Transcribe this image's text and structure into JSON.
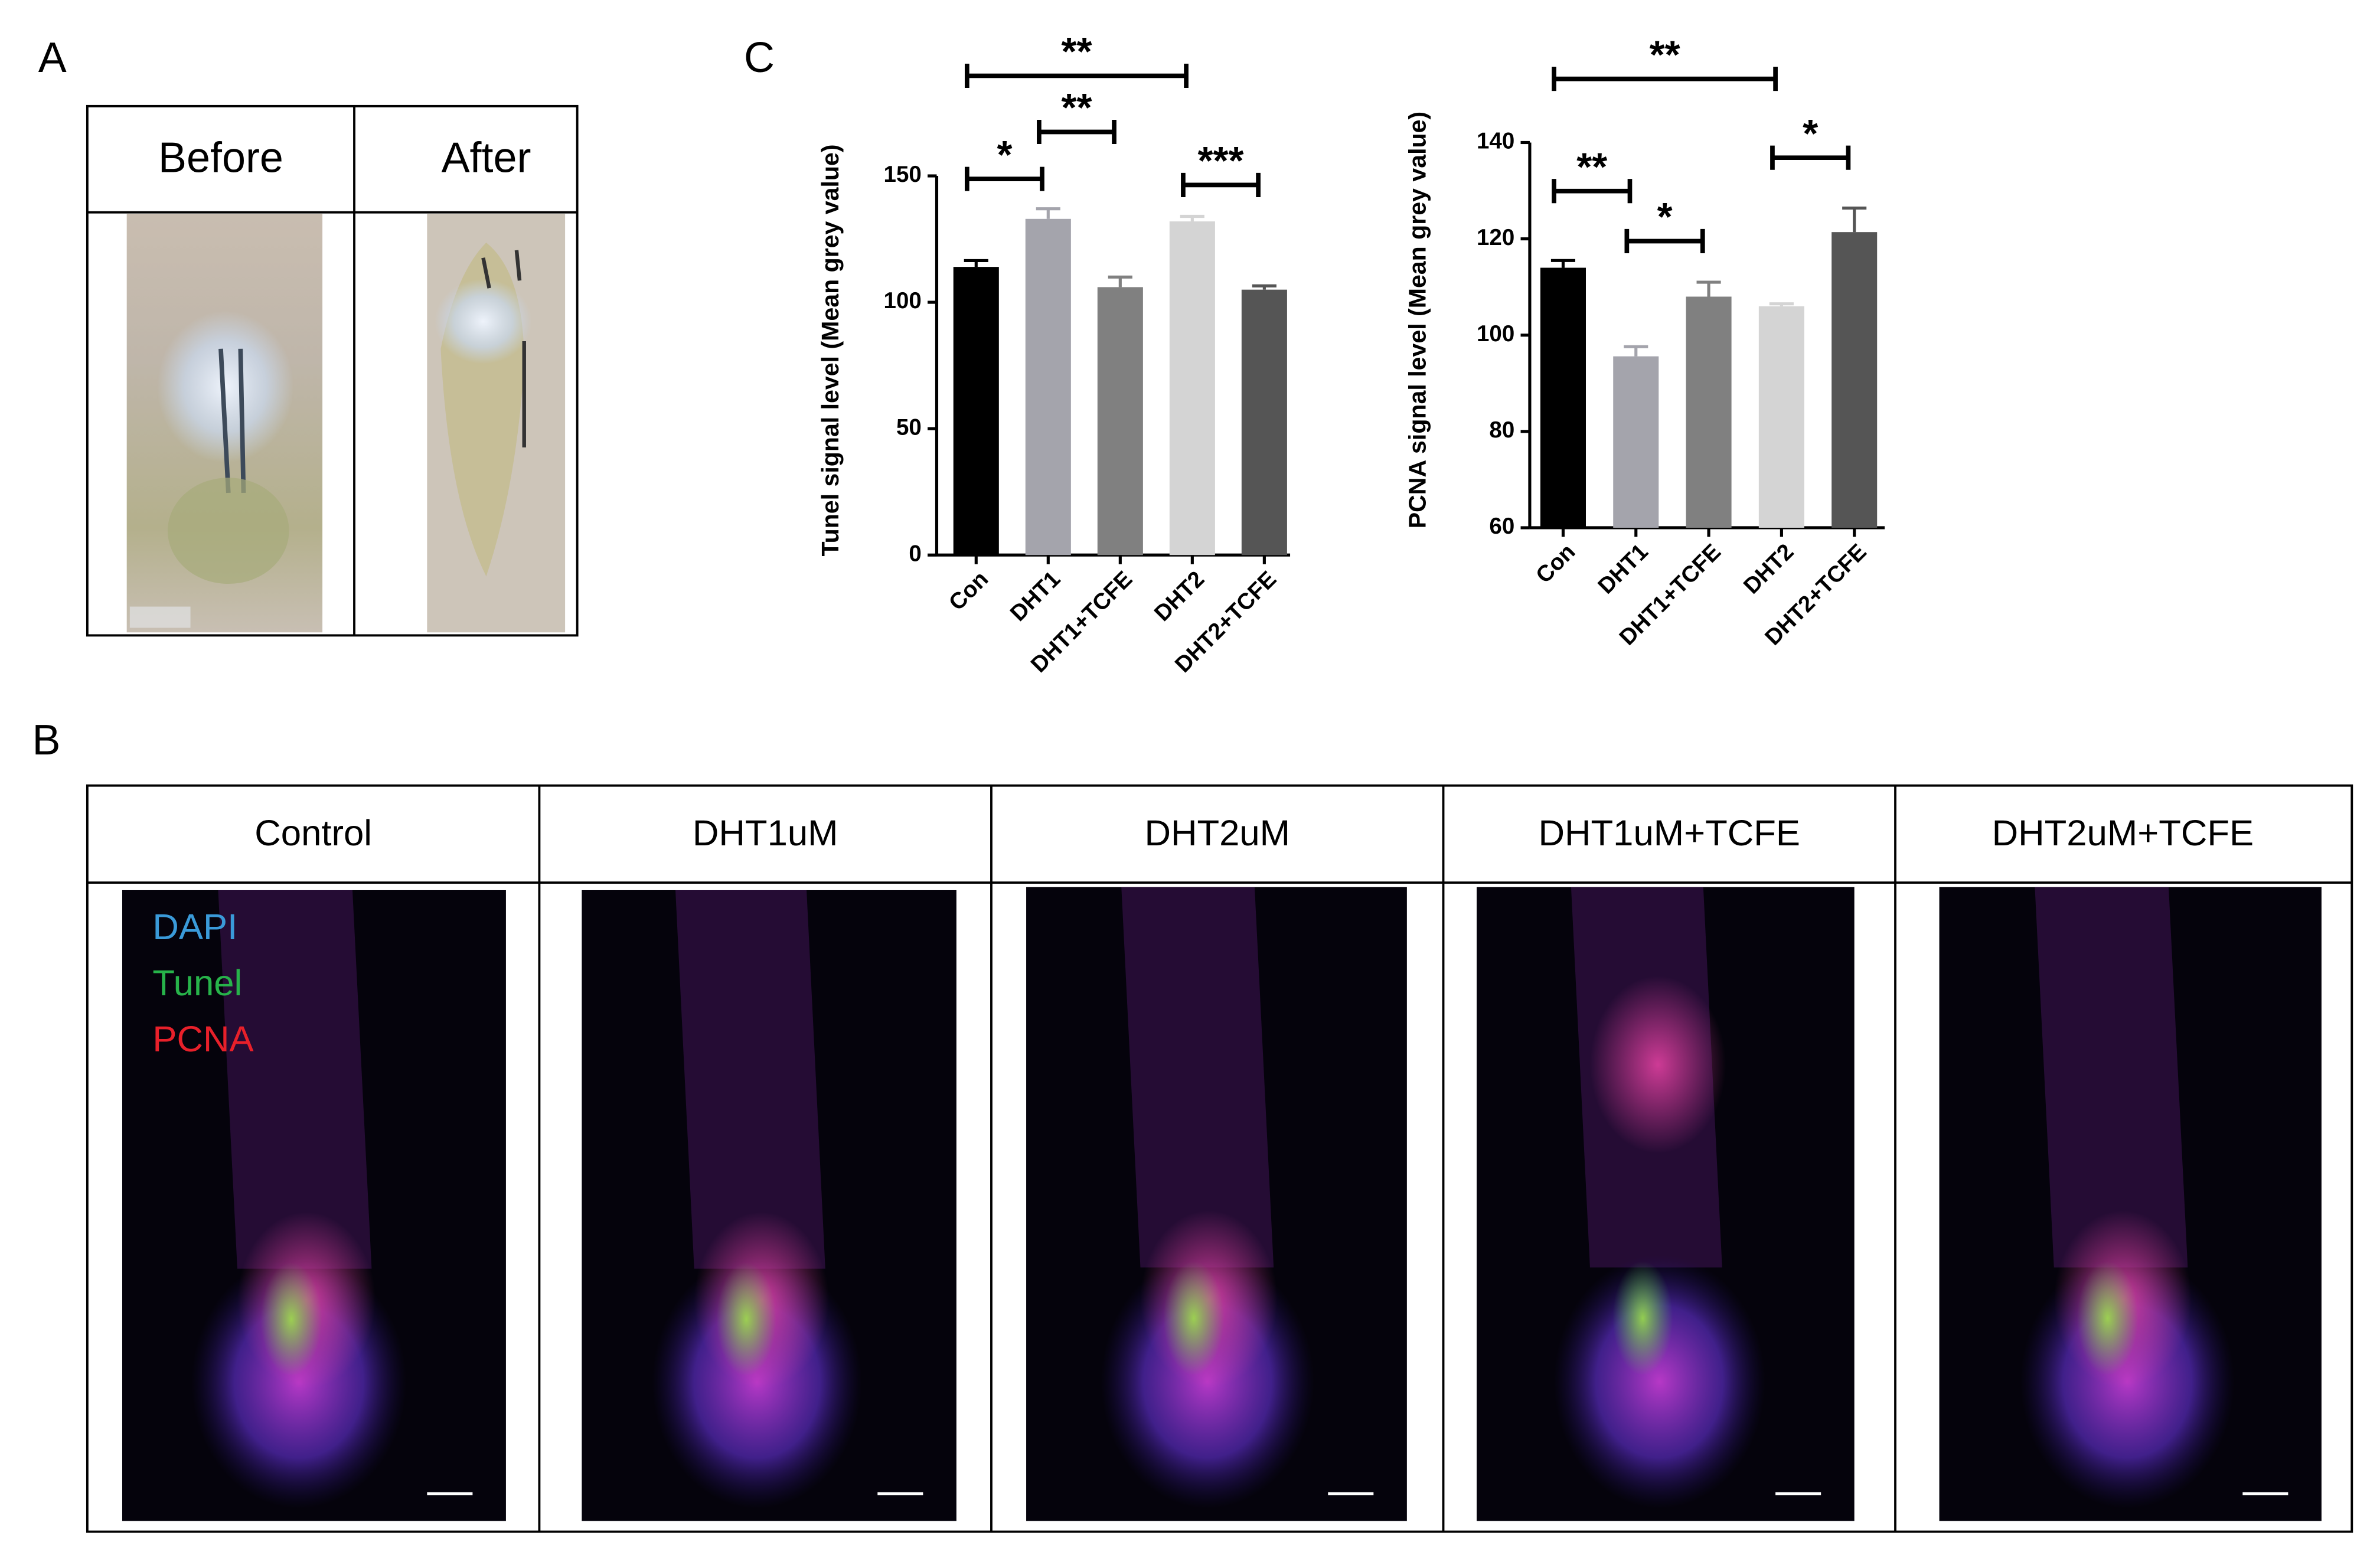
{
  "panel_labels": [
    "A",
    "B",
    "C"
  ],
  "panel_a": {
    "headers": [
      "Before",
      "After"
    ]
  },
  "panel_b": {
    "headers": [
      "Control",
      "DHT1uM",
      "DHT2uM",
      "DHT1uM+TCFE",
      "DHT2uM+TCFE"
    ],
    "legend": [
      {
        "name": "DAPI",
        "color": "#3a9ad9"
      },
      {
        "name": "Tunel",
        "color": "#27b34a"
      },
      {
        "name": "PCNA",
        "color": "#e8202a"
      }
    ]
  },
  "chart_data": [
    {
      "type": "bar",
      "ylabel": "Tunel signal level (Mean grey value)",
      "categories": [
        "Con",
        "DHT1",
        "DHT1+TCFE",
        "DHT2",
        "DHT2+TCFE"
      ],
      "values": [
        114,
        133,
        106,
        132,
        105
      ],
      "errors": [
        2.5,
        4,
        4,
        2,
        1.5
      ],
      "colors": [
        "#000000",
        "#a4a4ac",
        "#808080",
        "#d4d4d4",
        "#555555"
      ],
      "ylim": [
        0,
        150
      ],
      "yticks": [
        0,
        50,
        100,
        150
      ],
      "significance": [
        "**",
        "*",
        "**",
        "***"
      ]
    },
    {
      "type": "bar",
      "ylabel": "PCNA signal level (Mean grey value)",
      "categories": [
        "Con",
        "DHT1",
        "DHT1+TCFE",
        "DHT2",
        "DHT2+TCFE"
      ],
      "values": [
        114,
        95.6,
        108,
        106,
        121.4
      ],
      "errors": [
        1.5,
        2,
        3,
        0.5,
        5
      ],
      "colors": [
        "#000000",
        "#a4a4ac",
        "#808080",
        "#d4d4d4",
        "#555555"
      ],
      "ylim": [
        60,
        140
      ],
      "yticks": [
        60,
        80,
        100,
        120,
        140
      ],
      "significance": [
        "**",
        "**",
        "*",
        "*"
      ]
    }
  ]
}
